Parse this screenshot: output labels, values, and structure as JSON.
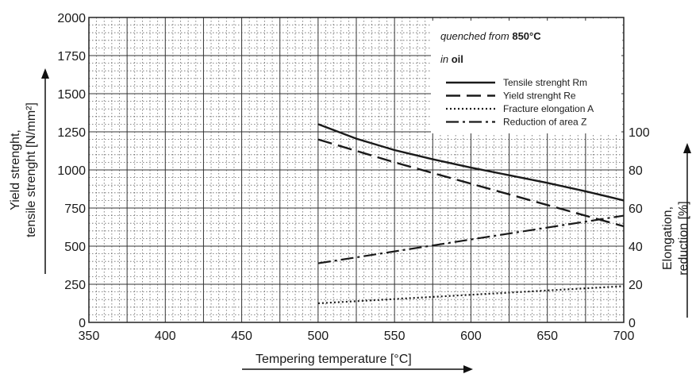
{
  "chart_data": {
    "type": "line",
    "xlabel": "Tempering temperature [°C]",
    "ylabel_left_line1": "Yield strenght,",
    "ylabel_left_line2": "tensile strenght [N/mm²]",
    "ylabel_right_line1": "Elongation,",
    "ylabel_right_line2": "reduction [%]",
    "xlim": [
      350,
      700
    ],
    "ylim_left": [
      0,
      2000
    ],
    "ylim_right": [
      0,
      100
    ],
    "x_ticks": [
      "350",
      "400",
      "450",
      "500",
      "550",
      "600",
      "650",
      "700"
    ],
    "y_left_ticks": [
      "0",
      "250",
      "500",
      "750",
      "1000",
      "1250",
      "1500",
      "1750",
      "2000"
    ],
    "y_right_ticks": [
      "0",
      "20",
      "40",
      "60",
      "80",
      "100"
    ],
    "annotation": {
      "prefix": "quenched from ",
      "temp": "850°C",
      "in": "in ",
      "medium": "oil"
    },
    "series": [
      {
        "name": "Tensile strenght Rm",
        "axis": "left",
        "style": "solid",
        "x": [
          500,
          525,
          550,
          575,
          600,
          625,
          650,
          675,
          700
        ],
        "y": [
          1300,
          1205,
          1130,
          1070,
          1015,
          965,
          915,
          860,
          800
        ]
      },
      {
        "name": "Yield strenght Re",
        "axis": "left",
        "style": "dashed",
        "x": [
          500,
          550,
          600,
          650,
          700
        ],
        "y": [
          1200,
          1050,
          910,
          770,
          630
        ]
      },
      {
        "name": "Fracture elongation A",
        "axis": "right",
        "style": "dotted",
        "x": [
          500,
          700
        ],
        "y": [
          10,
          19
        ]
      },
      {
        "name": "Reduction of area Z",
        "axis": "right",
        "style": "dashdot",
        "x": [
          500,
          700
        ],
        "y": [
          31,
          56
        ]
      }
    ]
  }
}
